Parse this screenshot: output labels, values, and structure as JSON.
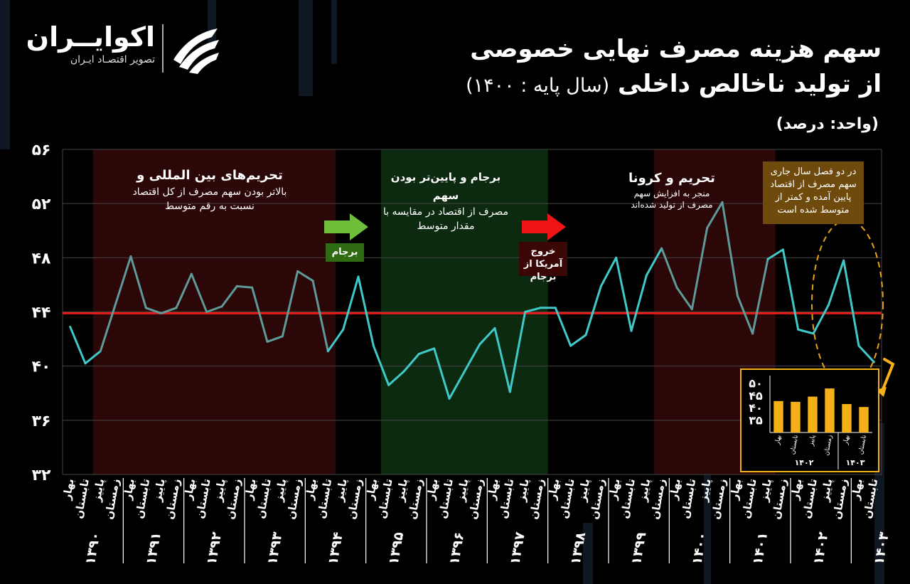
{
  "brand": {
    "name": "اکوایــران",
    "tagline": "تصویر اقتصـاد ایـران"
  },
  "title": {
    "line1": "سهم هزینه مصرف نهایی خصوصی",
    "line2": "از تولید ناخالص داخلی",
    "line2_paren": "(سال پایه : ۱۴۰۰)"
  },
  "unit": "(واحد: درصد)",
  "annotations": {
    "sanctions_intl": {
      "title": "تحریم‌های بین المللی و",
      "body": "بالاتر بودن سهم مصرف از کل اقتصاد نسبت به رقم متوسط"
    },
    "barjam": {
      "title": "برجام و پایین‌تر بودن سهم",
      "body": "مصرف از اقتصاد در مقایسه با مقدار متوسط"
    },
    "corona": {
      "title": "تحریم و کرونا",
      "body": "منجر به افزایش سهم مصرف از تولید شده‌اند"
    },
    "recent": "در دو فصل سال جاری سهم مصرف از اقتصاد پایین آمده و کمتر از متوسط شده است",
    "barjam_label": "برجام",
    "us_exit_label": "خروج آمریکا از برجام"
  },
  "colors": {
    "line": "#40c9c9",
    "line_dim": "#5f9a98",
    "average": "#e51b1b",
    "sanction_band": "#2c0708",
    "barjam_band": "#0c2a10",
    "note_bg": "#6f4a0d",
    "inset_bar": "#f4b018",
    "green_arrow": "#6fbf3a",
    "red_arrow": "#f01414"
  },
  "chart_data": {
    "type": "line",
    "ylim": [
      32,
      56
    ],
    "yticks": [
      "۳۲",
      "۳۶",
      "۴۰",
      "۴۴",
      "۴۸",
      "۵۲",
      "۵۶"
    ],
    "average": 43.9,
    "quarters": [
      "بهار",
      "تابستان",
      "پاییز",
      "زمستان"
    ],
    "years": [
      "۱۳۹۰",
      "۱۳۹۱",
      "۱۳۹۲",
      "۱۳۹۳",
      "۱۳۹۴",
      "۱۳۹۵",
      "۱۳۹۶",
      "۱۳۹۷",
      "۱۳۹۸",
      "۱۳۹۹",
      "۱۴۰۰",
      "۱۴۰۱",
      "۱۴۰۲",
      "۱۴۰۳"
    ],
    "values": [
      42.9,
      40.2,
      41.1,
      44.6,
      48.1,
      44.3,
      43.9,
      44.3,
      46.8,
      44.0,
      44.4,
      45.9,
      45.8,
      41.8,
      42.2,
      47.0,
      46.3,
      41.1,
      42.7,
      46.6,
      41.5,
      38.6,
      39.6,
      40.9,
      41.3,
      37.6,
      39.6,
      41.6,
      42.8,
      38.1,
      44.0,
      44.3,
      44.3,
      41.5,
      42.3,
      45.9,
      48.0,
      42.6,
      46.7,
      48.7,
      45.8,
      44.2,
      50.2,
      52.1,
      45.2,
      42.4,
      47.9,
      48.6,
      42.7,
      42.4,
      44.5,
      47.8,
      41.5,
      40.3
    ],
    "bands": [
      {
        "kind": "sanctions",
        "from": 2,
        "to": 17
      },
      {
        "kind": "barjam",
        "from": 21,
        "to": 31
      },
      {
        "kind": "sanctions",
        "from": 39,
        "to": 46
      }
    ],
    "inset": {
      "type": "bar",
      "ylim": [
        30,
        53
      ],
      "yticks": [
        "۳۵",
        "۴۰",
        "۴۵",
        "۵۰"
      ],
      "categories": [
        "بهار",
        "تابستان",
        "پاییز",
        "زمستان",
        "بهار",
        "تابستان"
      ],
      "values": [
        42.7,
        42.4,
        44.5,
        47.8,
        41.5,
        40.3
      ],
      "years": [
        "۱۴۰۲",
        "۱۴۰۳"
      ]
    }
  }
}
